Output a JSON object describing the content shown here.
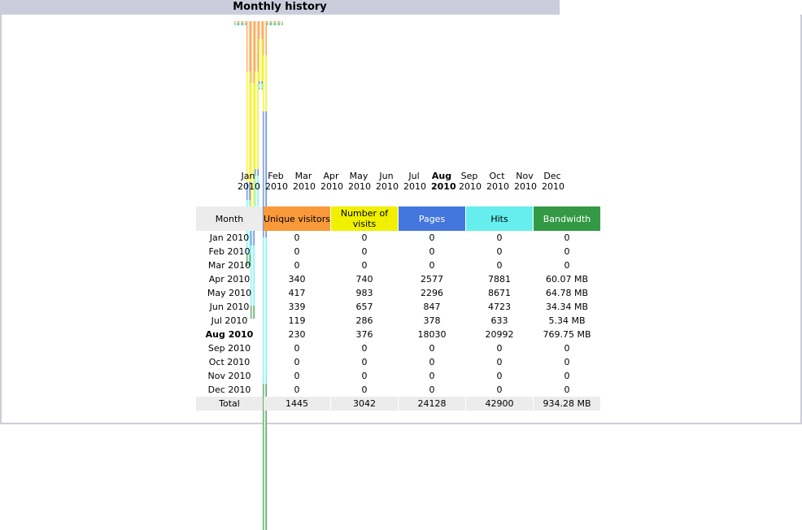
{
  "header": {
    "title": "Monthly history"
  },
  "chart_data": {
    "type": "bar",
    "categories": [
      "Jan 2010",
      "Feb 2010",
      "Mar 2010",
      "Apr 2010",
      "May 2010",
      "Jun 2010",
      "Jul 2010",
      "Aug 2010",
      "Sep 2010",
      "Oct 2010",
      "Nov 2010",
      "Dec 2010"
    ],
    "highlight": 7,
    "series": [
      {
        "name": "Unique visitors",
        "color": "#f99a3a",
        "scale_group": 0,
        "values": [
          0,
          0,
          0,
          340,
          417,
          339,
          119,
          230,
          0,
          0,
          0,
          0
        ],
        "total": 1445
      },
      {
        "name": "Number of visits",
        "color": "#f0f000",
        "scale_group": 0,
        "values": [
          0,
          0,
          0,
          740,
          983,
          657,
          286,
          376,
          0,
          0,
          0,
          0
        ],
        "total": 3042
      },
      {
        "name": "Pages",
        "color": "#4477dd",
        "scale_group": 1,
        "values": [
          0,
          0,
          0,
          2577,
          2296,
          847,
          378,
          18030,
          0,
          0,
          0,
          0
        ],
        "total": 24128
      },
      {
        "name": "Hits",
        "color": "#66eeee",
        "scale_group": 1,
        "values": [
          0,
          0,
          0,
          7881,
          8671,
          4723,
          633,
          20992,
          0,
          0,
          0,
          0
        ],
        "total": 42900
      },
      {
        "name": "Bandwidth",
        "color": "#339944",
        "scale_group": 2,
        "values": [
          0,
          0,
          0,
          60.07,
          64.78,
          34.34,
          5.34,
          769.75,
          0,
          0,
          0,
          0
        ],
        "value_labels": [
          "0",
          "0",
          "0",
          "60.07 MB",
          "64.78 MB",
          "34.34 MB",
          "5.34 MB",
          "769.75 MB",
          "0",
          "0",
          "0",
          "0"
        ],
        "total": 934.28,
        "total_label": "934.28 MB"
      }
    ]
  },
  "table": {
    "month_header": "Month",
    "total_label": "Total"
  }
}
